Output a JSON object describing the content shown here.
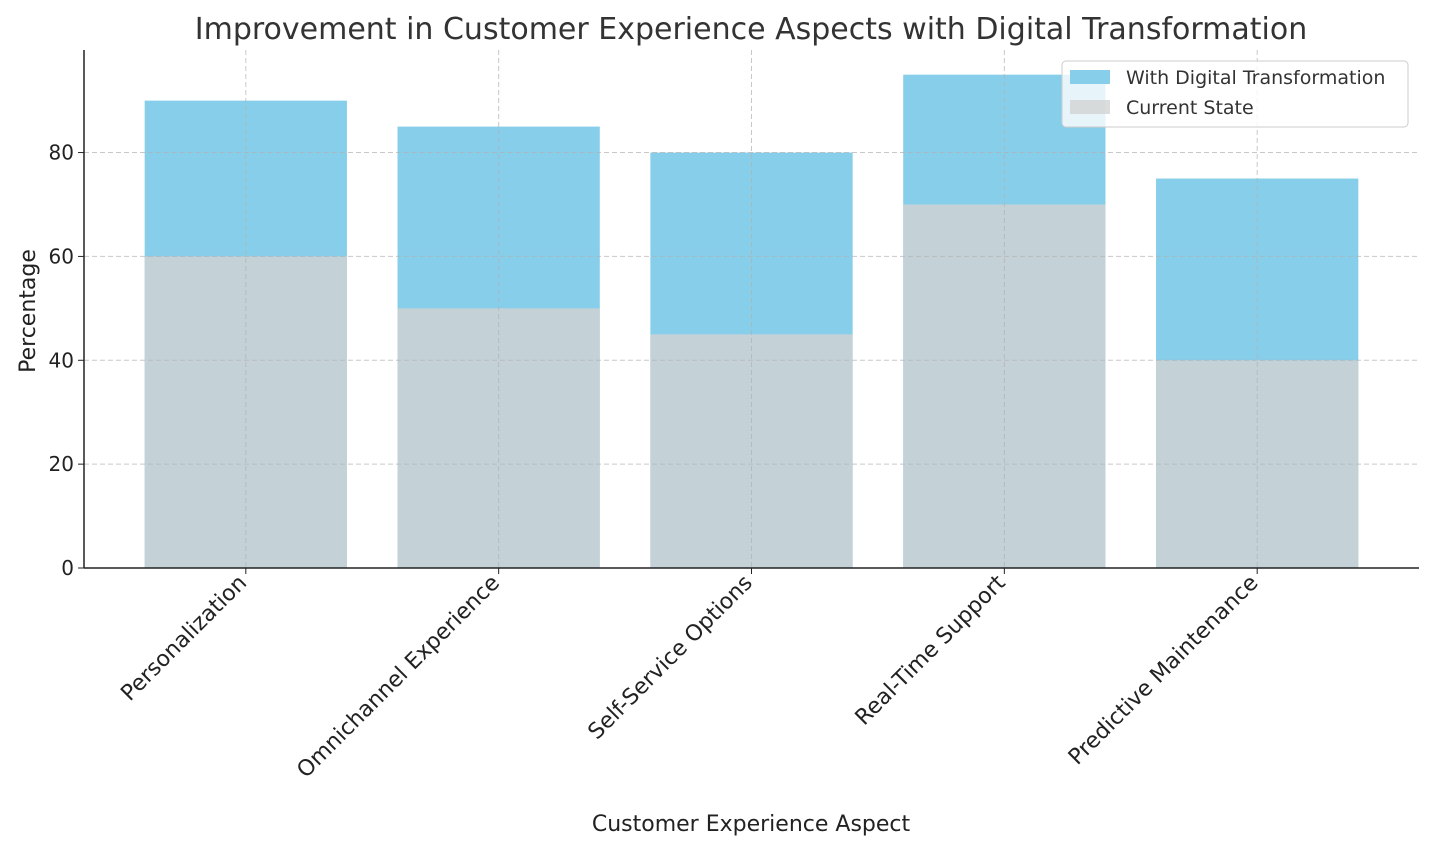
{
  "chart_data": {
    "type": "bar",
    "title": "Improvement in Customer Experience Aspects with Digital Transformation",
    "xlabel": "Customer Experience Aspect",
    "ylabel": "Percentage",
    "categories": [
      "Personalization",
      "Omnichannel Experience",
      "Self-Service Options",
      "Real-Time Support",
      "Predictive Maintenance"
    ],
    "series": [
      {
        "name": "With Digital Transformation",
        "values": [
          90,
          85,
          80,
          95,
          75
        ],
        "color": "#87CEEB"
      },
      {
        "name": "Current State",
        "values": [
          60,
          50,
          45,
          70,
          40
        ],
        "color": "#D3D3D3"
      }
    ],
    "yticks": [
      0,
      20,
      40,
      60,
      80
    ],
    "ylim": [
      0,
      99.75
    ],
    "grid": true,
    "legend": "top-right"
  }
}
